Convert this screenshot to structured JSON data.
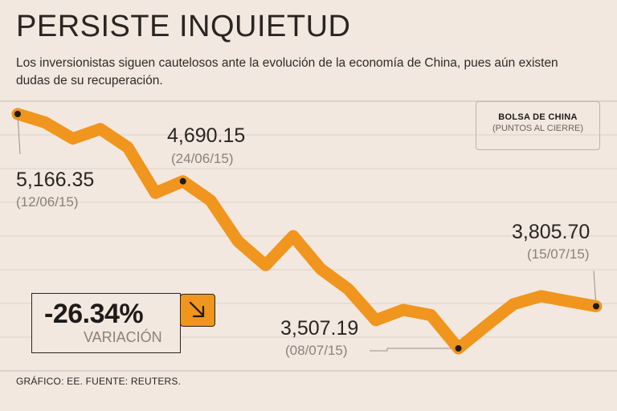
{
  "header": {
    "title": "PERSISTE INQUIETUD",
    "subtitle": "Los inversionistas siguen cautelosos ante la evolución de la economía de China, pues aún existen dudas de su recuperación."
  },
  "legend": {
    "title": "BOLSA DE CHINA",
    "subtitle": "(PUNTOS AL CIERRE)"
  },
  "annotations": [
    {
      "value": "5,166.35",
      "date": "(12/06/15)"
    },
    {
      "value": "4,690.15",
      "date": "(24/06/15)"
    },
    {
      "value": "3,507.19",
      "date": "(08/07/15)"
    },
    {
      "value": "3,805.70",
      "date": "(15/07/15)"
    }
  ],
  "variation": {
    "percent": "-26.34%",
    "label": "VARIACIÓN"
  },
  "footer": "GRÁFICO: EE. FUENTE: REUTERS.",
  "colors": {
    "line": "#f0951e",
    "background": "#f2e8df",
    "grid": "#ddd2c9",
    "text": "#2a2522",
    "muted": "#8a817b"
  },
  "icons": {
    "variation": "arrow-down-right-icon"
  },
  "chart_data": {
    "type": "line",
    "title": "BOLSA DE CHINA",
    "ylabel": "PUNTOS AL CIERRE",
    "ylim": [
      3450,
      5200
    ],
    "series": [
      {
        "name": "Bolsa de China",
        "values": [
          5166.35,
          5106,
          4992,
          5060,
          4930,
          4608,
          4690.15,
          4555,
          4265,
          4096,
          4302,
          4070,
          3927,
          3707,
          3780,
          3743,
          3507.19,
          3667,
          3820,
          3877,
          3840,
          3805.7
        ]
      }
    ],
    "highlighted_points": [
      {
        "index": 0,
        "value": 5166.35,
        "date": "12/06/15"
      },
      {
        "index": 6,
        "value": 4690.15,
        "date": "24/06/15"
      },
      {
        "index": 16,
        "value": 3507.19,
        "date": "08/07/15"
      },
      {
        "index": 21,
        "value": 3805.7,
        "date": "15/07/15"
      }
    ]
  }
}
